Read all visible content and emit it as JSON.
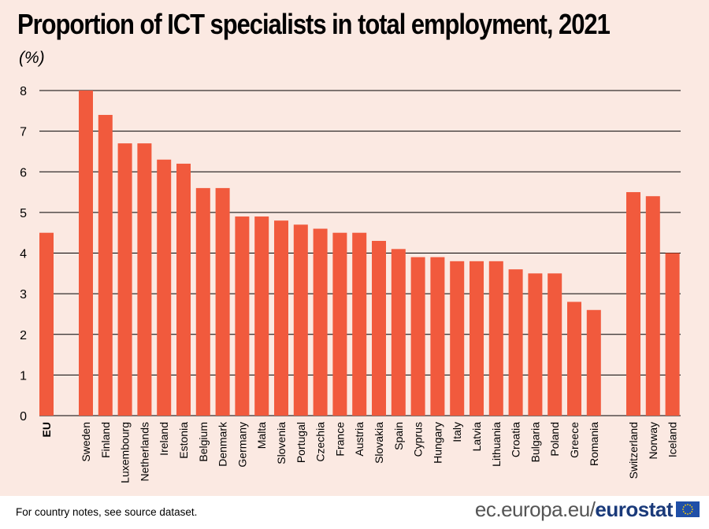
{
  "chart_data": {
    "type": "bar",
    "title": "Proportion of ICT specialists in total employment, 2021",
    "unit": "(%)",
    "categories": [
      "EU",
      "Sweden",
      "Finland",
      "Luxembourg",
      "Netherlands",
      "Ireland",
      "Estonia",
      "Belgium",
      "Denmark",
      "Germany",
      "Malta",
      "Slovenia",
      "Portugal",
      "Czechia",
      "France",
      "Austria",
      "Slovakia",
      "Spain",
      "Cyprus",
      "Hungary",
      "Italy",
      "Latvia",
      "Lithuania",
      "Croatia",
      "Bulgaria",
      "Poland",
      "Greece",
      "Romania",
      "Switzerland",
      "Norway",
      "Iceland"
    ],
    "values": [
      4.5,
      8.0,
      7.4,
      6.7,
      6.7,
      6.3,
      6.2,
      5.6,
      5.6,
      4.9,
      4.9,
      4.8,
      4.7,
      4.6,
      4.5,
      4.5,
      4.3,
      4.1,
      3.9,
      3.9,
      3.8,
      3.8,
      3.8,
      3.6,
      3.5,
      3.5,
      2.8,
      2.6,
      5.5,
      5.4,
      4.0
    ],
    "ylim": [
      0,
      8
    ],
    "yticks": [
      0,
      1,
      2,
      3,
      4,
      5,
      6,
      7,
      8
    ],
    "bar_color": "#f15a3d",
    "grid": true
  },
  "footer": {
    "note": "For country notes, see source dataset.",
    "source_prefix": "ec.europa.eu/",
    "source_brand": "eurostat"
  },
  "colors": {
    "background": "#fbe9e2",
    "bar": "#f15a3d",
    "grid": "#000000",
    "flag": "#1f4fa8",
    "flag_stars": "#ffd200"
  }
}
